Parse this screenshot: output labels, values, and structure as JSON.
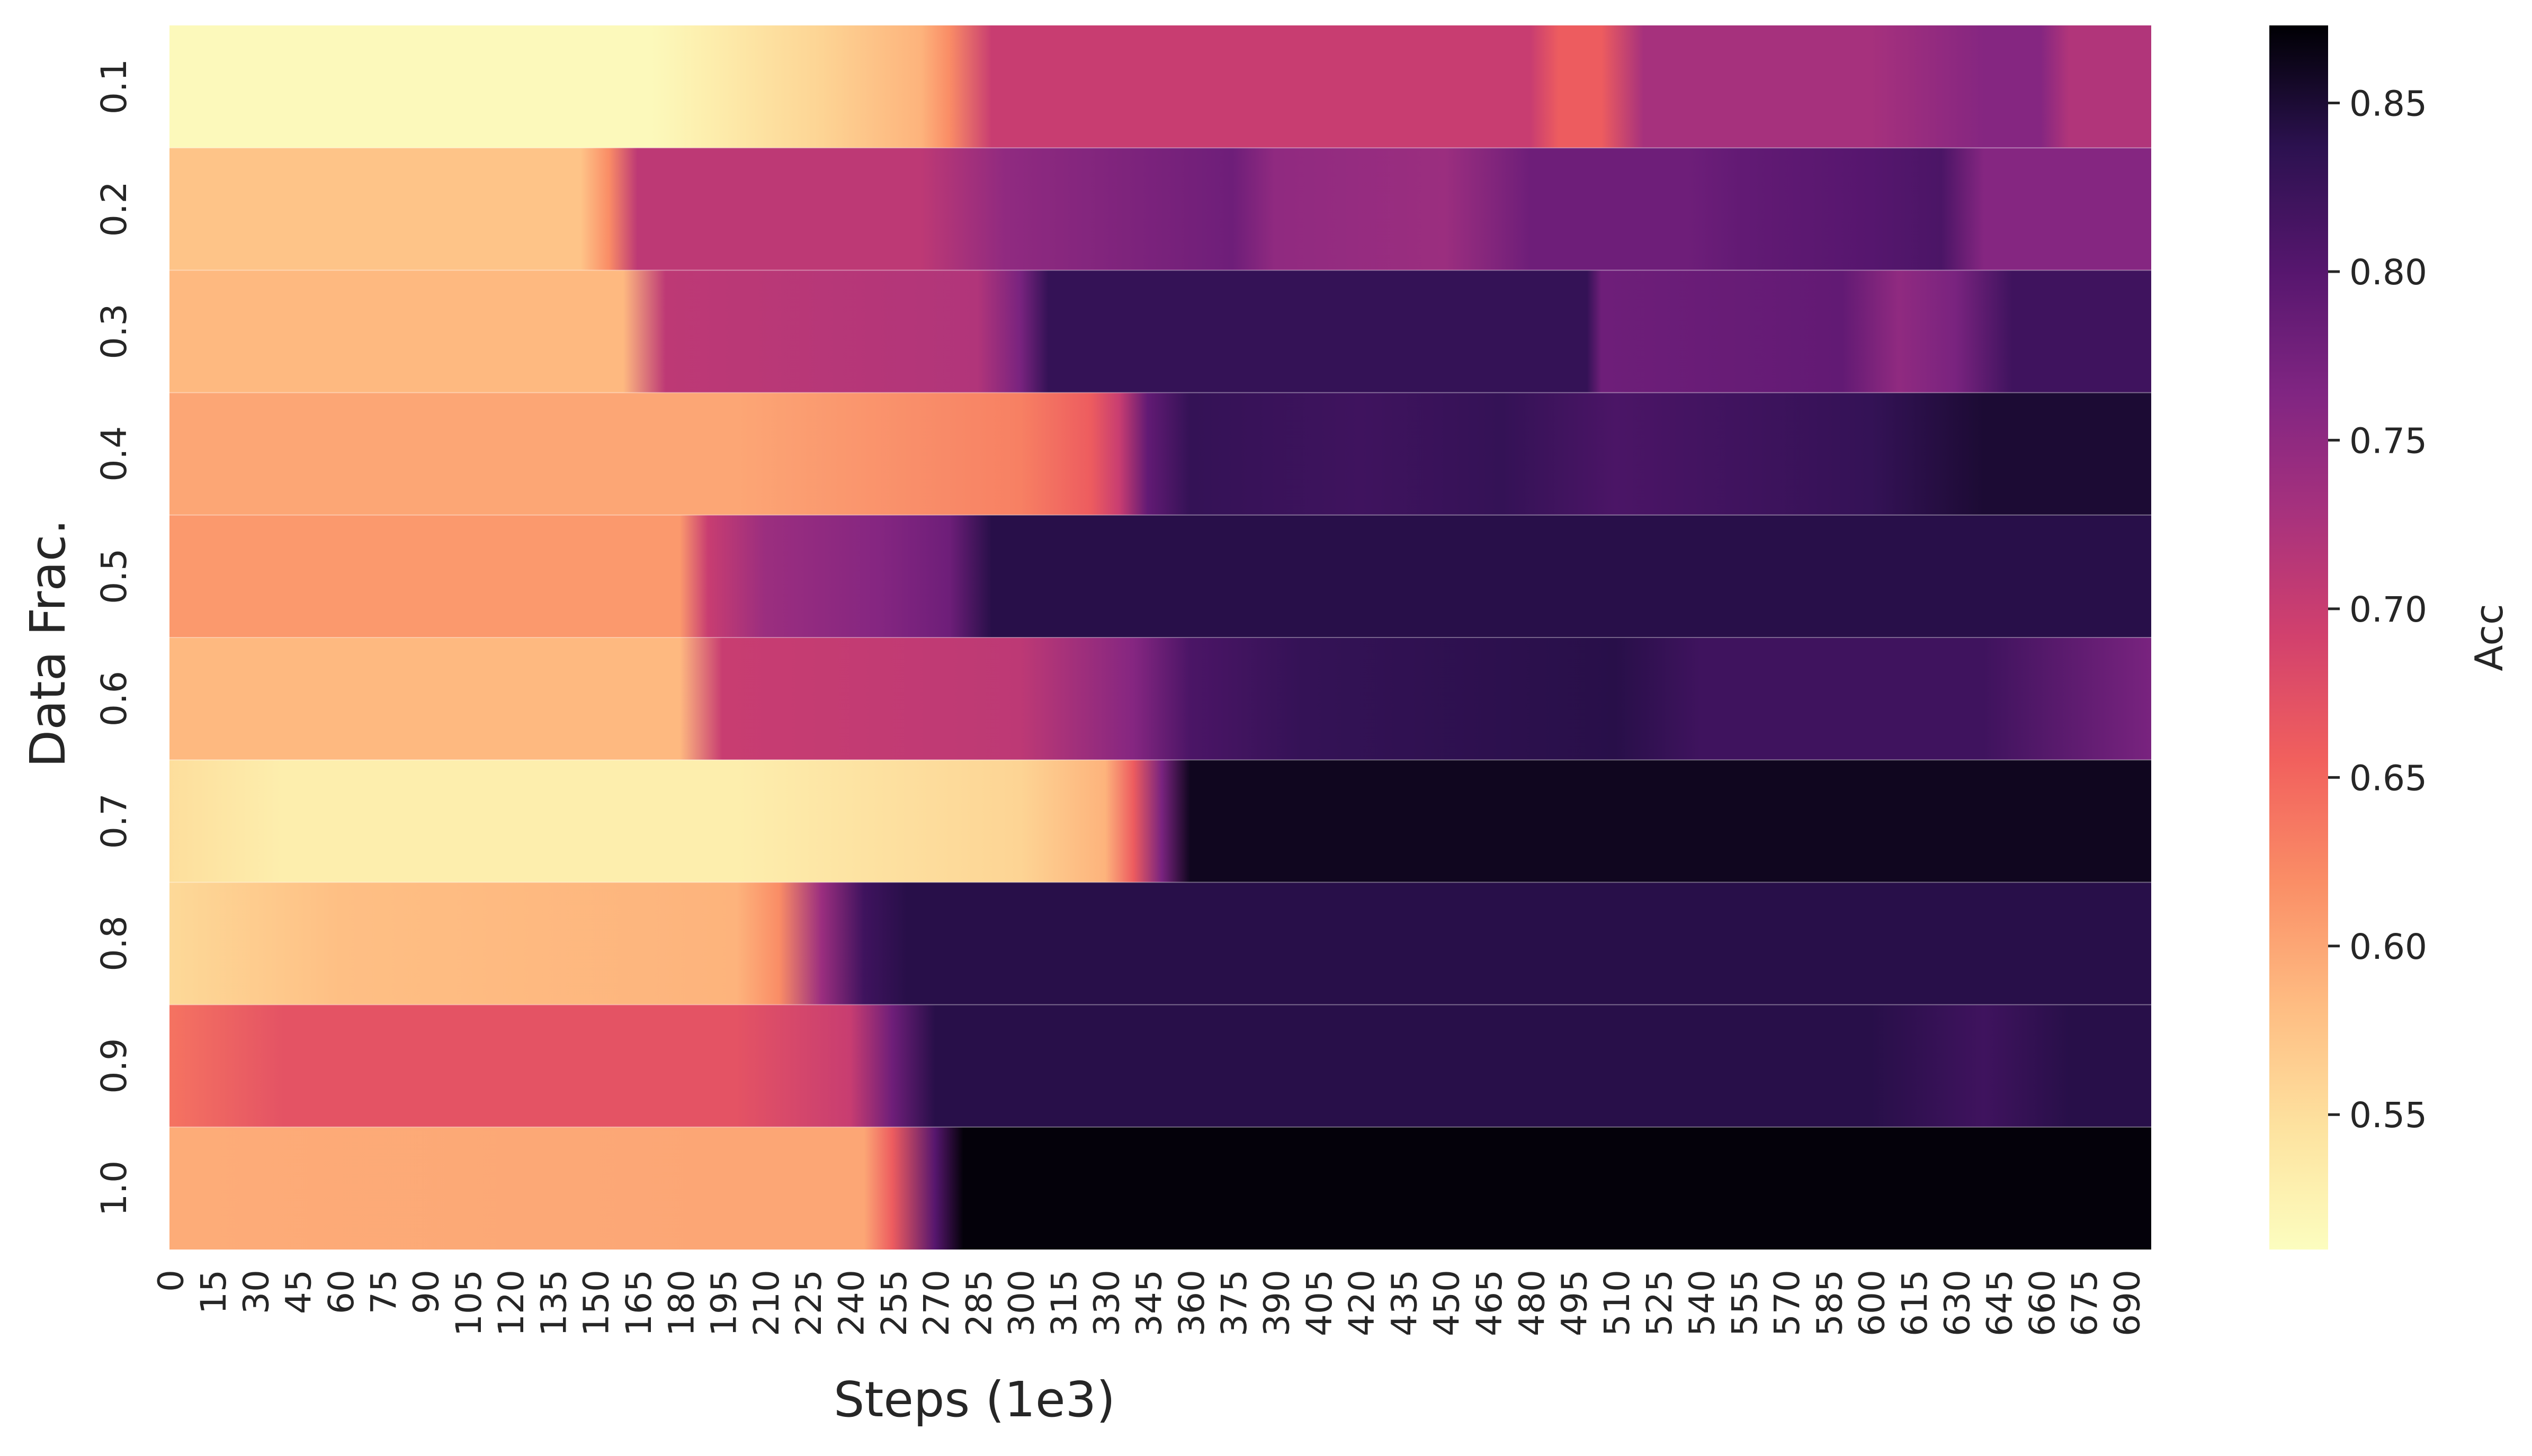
{
  "chart_data": {
    "type": "heatmap",
    "title": "",
    "xlabel": "Steps (1e3)",
    "ylabel": "Data Frac.",
    "colorbar_label": "Acc",
    "colormap": "magma_r",
    "x_ticks": [
      "0",
      "15",
      "30",
      "45",
      "60",
      "75",
      "90",
      "105",
      "120",
      "135",
      "150",
      "165",
      "180",
      "195",
      "210",
      "225",
      "240",
      "255",
      "270",
      "285",
      "300",
      "315",
      "330",
      "345",
      "360",
      "375",
      "390",
      "405",
      "420",
      "435",
      "450",
      "465",
      "480",
      "495",
      "510",
      "525",
      "540",
      "555",
      "570",
      "585",
      "600",
      "615",
      "630",
      "645",
      "660",
      "675",
      "690"
    ],
    "x_range": [
      0,
      699
    ],
    "rows": [
      "0.1",
      "0.2",
      "0.3",
      "0.4",
      "0.5",
      "0.6",
      "0.7",
      "0.8",
      "0.9",
      "1.0"
    ],
    "color_range": [
      0.51,
      0.873
    ],
    "colorbar_ticks": [
      "0.55",
      "0.60",
      "0.65",
      "0.70",
      "0.75",
      "0.80",
      "0.85"
    ],
    "series": [
      {
        "name": "0.1",
        "profile": [
          [
            0,
            0.515
          ],
          [
            170,
            0.515
          ],
          [
            190,
            0.53
          ],
          [
            230,
            0.56
          ],
          [
            265,
            0.59
          ],
          [
            275,
            0.62
          ],
          [
            290,
            0.7
          ],
          [
            480,
            0.7
          ],
          [
            490,
            0.66
          ],
          [
            505,
            0.66
          ],
          [
            520,
            0.73
          ],
          [
            600,
            0.73
          ],
          [
            640,
            0.76
          ],
          [
            660,
            0.76
          ],
          [
            670,
            0.72
          ],
          [
            699,
            0.72
          ]
        ]
      },
      {
        "name": "0.2",
        "profile": [
          [
            0,
            0.575
          ],
          [
            145,
            0.575
          ],
          [
            155,
            0.62
          ],
          [
            165,
            0.71
          ],
          [
            265,
            0.71
          ],
          [
            295,
            0.75
          ],
          [
            375,
            0.78
          ],
          [
            390,
            0.75
          ],
          [
            450,
            0.74
          ],
          [
            480,
            0.78
          ],
          [
            535,
            0.78
          ],
          [
            555,
            0.79
          ],
          [
            600,
            0.8
          ],
          [
            625,
            0.81
          ],
          [
            640,
            0.76
          ],
          [
            699,
            0.76
          ]
        ]
      },
      {
        "name": "0.3",
        "profile": [
          [
            0,
            0.585
          ],
          [
            160,
            0.585
          ],
          [
            175,
            0.71
          ],
          [
            285,
            0.72
          ],
          [
            300,
            0.77
          ],
          [
            310,
            0.83
          ],
          [
            500,
            0.83
          ],
          [
            505,
            0.78
          ],
          [
            590,
            0.79
          ],
          [
            610,
            0.75
          ],
          [
            630,
            0.77
          ],
          [
            650,
            0.82
          ],
          [
            699,
            0.82
          ]
        ]
      },
      {
        "name": "0.4",
        "profile": [
          [
            0,
            0.6
          ],
          [
            200,
            0.6
          ],
          [
            300,
            0.63
          ],
          [
            325,
            0.66
          ],
          [
            335,
            0.7
          ],
          [
            345,
            0.79
          ],
          [
            360,
            0.83
          ],
          [
            420,
            0.82
          ],
          [
            470,
            0.83
          ],
          [
            510,
            0.81
          ],
          [
            555,
            0.82
          ],
          [
            600,
            0.83
          ],
          [
            640,
            0.85
          ],
          [
            699,
            0.85
          ]
        ]
      },
      {
        "name": "0.5",
        "profile": [
          [
            0,
            0.61
          ],
          [
            180,
            0.61
          ],
          [
            190,
            0.7
          ],
          [
            210,
            0.74
          ],
          [
            250,
            0.76
          ],
          [
            275,
            0.78
          ],
          [
            290,
            0.84
          ],
          [
            699,
            0.84
          ],
          [
            680,
            0.82
          ],
          [
            699,
            0.78
          ]
        ]
      },
      {
        "name": "0.6",
        "profile": [
          [
            0,
            0.585
          ],
          [
            180,
            0.585
          ],
          [
            195,
            0.7
          ],
          [
            300,
            0.71
          ],
          [
            340,
            0.76
          ],
          [
            360,
            0.81
          ],
          [
            400,
            0.83
          ],
          [
            510,
            0.84
          ],
          [
            540,
            0.82
          ],
          [
            640,
            0.82
          ],
          [
            699,
            0.77
          ]
        ]
      },
      {
        "name": "0.7",
        "profile": [
          [
            0,
            0.55
          ],
          [
            40,
            0.53
          ],
          [
            200,
            0.53
          ],
          [
            300,
            0.56
          ],
          [
            330,
            0.59
          ],
          [
            340,
            0.66
          ],
          [
            350,
            0.77
          ],
          [
            360,
            0.86
          ],
          [
            699,
            0.86
          ]
        ]
      },
      {
        "name": "0.8",
        "profile": [
          [
            0,
            0.555
          ],
          [
            60,
            0.58
          ],
          [
            200,
            0.59
          ],
          [
            215,
            0.62
          ],
          [
            230,
            0.74
          ],
          [
            245,
            0.82
          ],
          [
            260,
            0.84
          ],
          [
            699,
            0.84
          ]
        ]
      },
      {
        "name": "0.9",
        "profile": [
          [
            0,
            0.64
          ],
          [
            40,
            0.67
          ],
          [
            200,
            0.67
          ],
          [
            240,
            0.7
          ],
          [
            255,
            0.78
          ],
          [
            270,
            0.84
          ],
          [
            600,
            0.84
          ],
          [
            640,
            0.82
          ],
          [
            670,
            0.84
          ],
          [
            699,
            0.84
          ]
        ]
      },
      {
        "name": "1.0",
        "profile": [
          [
            0,
            0.595
          ],
          [
            200,
            0.6
          ],
          [
            245,
            0.6
          ],
          [
            255,
            0.66
          ],
          [
            270,
            0.8
          ],
          [
            280,
            0.87
          ],
          [
            699,
            0.87
          ]
        ]
      }
    ]
  }
}
